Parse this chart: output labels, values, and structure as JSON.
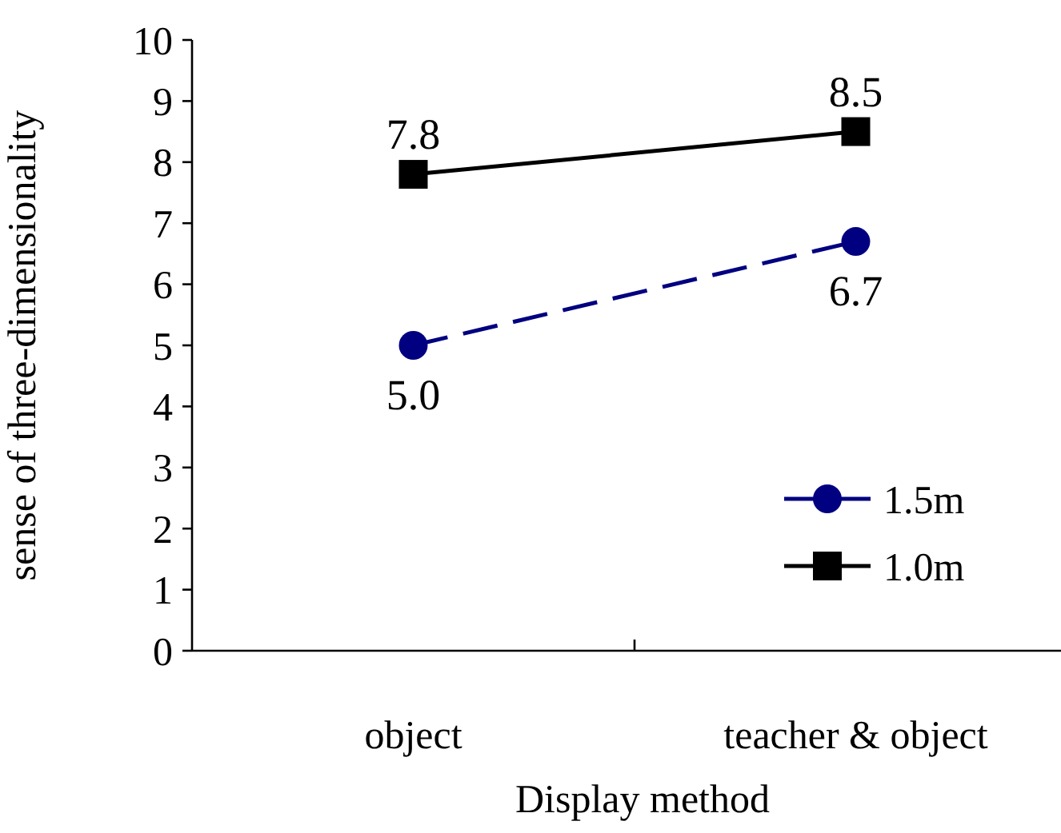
{
  "chart_data": {
    "type": "line",
    "xlabel": "Display method",
    "ylabel": "sense of three-dimensionality",
    "categories": [
      "object",
      "teacher & object"
    ],
    "ylim": [
      0,
      10
    ],
    "yticks": [
      0,
      1,
      2,
      3,
      4,
      5,
      6,
      7,
      8,
      9,
      10
    ],
    "grid": false,
    "legend": "bottom right",
    "series": [
      {
        "name": "1.5m",
        "color": "#000080",
        "values": [
          5.0,
          6.7
        ],
        "value_labels": [
          "5.0",
          "6.7"
        ],
        "marker": "circle",
        "line_style": "dashed"
      },
      {
        "name": "1.0m",
        "color": "#000000",
        "values": [
          7.8,
          8.5
        ],
        "value_labels": [
          "7.8",
          "8.5"
        ],
        "marker": "square",
        "line_style": "solid"
      }
    ]
  }
}
